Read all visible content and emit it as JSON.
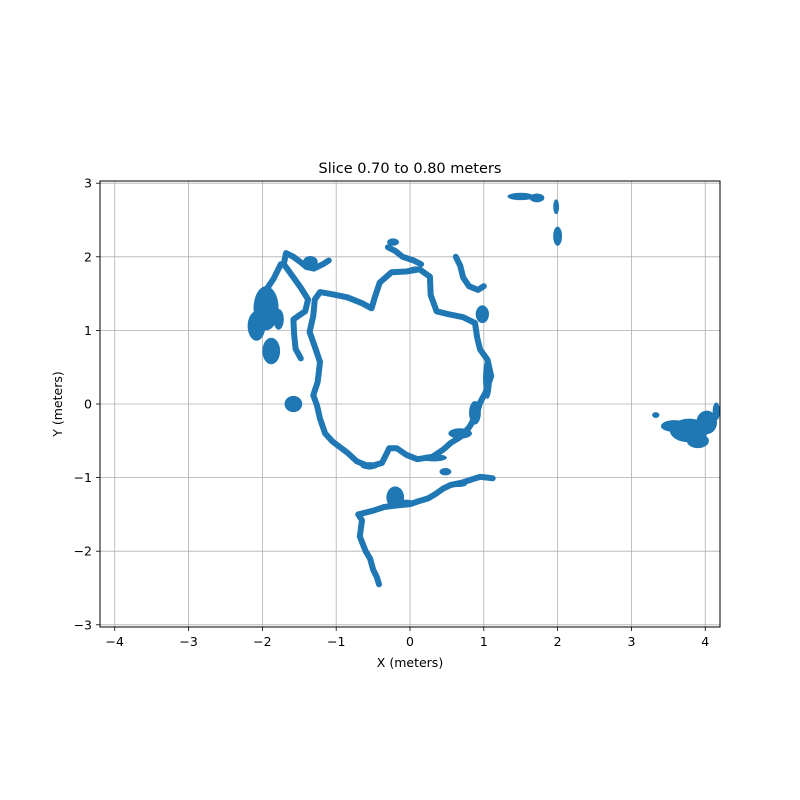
{
  "chart_data": {
    "type": "scatter",
    "title": "Slice 0.70 to 0.80 meters",
    "xlabel": "X (meters)",
    "ylabel": "Y (meters)",
    "xlim": [
      -4.2,
      4.2
    ],
    "ylim": [
      -3.03,
      3.03
    ],
    "xticks": [
      -4,
      -3,
      -2,
      -1,
      0,
      1,
      2,
      3,
      4
    ],
    "yticks": [
      -3,
      -2,
      -1,
      0,
      1,
      2,
      3
    ],
    "xtick_labels": [
      "−4",
      "−3",
      "−2",
      "−1",
      "0",
      "1",
      "2",
      "3",
      "4"
    ],
    "ytick_labels": [
      "−3",
      "−2",
      "−1",
      "0",
      "1",
      "2",
      "3"
    ],
    "grid": true,
    "color": "#1f77b4",
    "series": [
      {
        "paths": [
          [
            [
              -1.22,
              0.57
            ],
            [
              -1.27,
              0.72
            ],
            [
              -1.36,
              0.98
            ],
            [
              -1.31,
              1.2
            ],
            [
              -1.29,
              1.42
            ],
            [
              -1.22,
              1.52
            ],
            [
              -1.05,
              1.49
            ],
            [
              -0.85,
              1.45
            ],
            [
              -0.65,
              1.37
            ],
            [
              -0.52,
              1.3
            ],
            [
              -0.48,
              1.44
            ],
            [
              -0.41,
              1.65
            ],
            [
              -0.25,
              1.79
            ],
            [
              -0.05,
              1.8
            ],
            [
              0.13,
              1.83
            ],
            [
              0.27,
              1.73
            ],
            [
              0.28,
              1.48
            ],
            [
              0.36,
              1.26
            ],
            [
              0.52,
              1.22
            ],
            [
              0.72,
              1.18
            ],
            [
              0.88,
              1.1
            ],
            [
              0.91,
              0.9
            ],
            [
              0.95,
              0.74
            ],
            [
              1.05,
              0.6
            ],
            [
              1.1,
              0.38
            ],
            [
              1.02,
              0.15
            ],
            [
              0.95,
              0.02
            ],
            [
              0.9,
              -0.15
            ],
            [
              0.8,
              -0.32
            ],
            [
              0.68,
              -0.45
            ],
            [
              0.55,
              -0.53
            ],
            [
              0.45,
              -0.62
            ],
            [
              0.3,
              -0.72
            ],
            [
              0.1,
              -0.75
            ],
            [
              -0.05,
              -0.69
            ],
            [
              -0.18,
              -0.6
            ],
            [
              -0.28,
              -0.6
            ],
            [
              -0.38,
              -0.8
            ],
            [
              -0.55,
              -0.85
            ],
            [
              -0.72,
              -0.78
            ],
            [
              -0.85,
              -0.66
            ],
            [
              -1.05,
              -0.51
            ],
            [
              -1.15,
              -0.4
            ],
            [
              -1.22,
              -0.2
            ],
            [
              -1.26,
              -0.02
            ],
            [
              -1.31,
              0.12
            ],
            [
              -1.25,
              0.3
            ],
            [
              -1.22,
              0.57
            ]
          ],
          [
            [
              -1.48,
              0.62
            ],
            [
              -1.55,
              0.75
            ],
            [
              -1.57,
              0.95
            ],
            [
              -1.58,
              1.15
            ],
            [
              -1.48,
              1.22
            ],
            [
              -1.42,
              1.26
            ],
            [
              -1.38,
              1.42
            ],
            [
              -1.48,
              1.58
            ],
            [
              -1.58,
              1.72
            ],
            [
              -1.65,
              1.82
            ],
            [
              -1.71,
              1.9
            ],
            [
              -1.68,
              2.05
            ],
            [
              -1.58,
              2.0
            ],
            [
              -1.5,
              1.94
            ],
            [
              -1.4,
              1.86
            ],
            [
              -1.3,
              1.84
            ],
            [
              -1.18,
              1.9
            ],
            [
              -1.1,
              1.95
            ]
          ],
          [
            [
              -1.75,
              1.9
            ],
            [
              -1.85,
              1.7
            ],
            [
              -1.95,
              1.55
            ]
          ],
          [
            [
              -0.7,
              -1.5
            ],
            [
              -0.65,
              -1.58
            ],
            [
              -0.68,
              -1.8
            ],
            [
              -0.6,
              -2.0
            ],
            [
              -0.54,
              -2.1
            ],
            [
              -0.5,
              -2.25
            ],
            [
              -0.45,
              -2.35
            ],
            [
              -0.42,
              -2.45
            ]
          ],
          [
            [
              -0.7,
              -1.5
            ],
            [
              -0.5,
              -1.45
            ],
            [
              -0.35,
              -1.4
            ],
            [
              -0.2,
              -1.38
            ],
            [
              0.0,
              -1.36
            ],
            [
              0.12,
              -1.32
            ],
            [
              0.25,
              -1.28
            ],
            [
              0.35,
              -1.22
            ],
            [
              0.45,
              -1.15
            ],
            [
              0.55,
              -1.1
            ],
            [
              0.7,
              -1.07
            ],
            [
              0.85,
              -1.02
            ],
            [
              0.95,
              -0.99
            ],
            [
              1.05,
              -1.0
            ],
            [
              1.12,
              -1.01
            ]
          ],
          [
            [
              -0.3,
              2.13
            ],
            [
              -0.2,
              2.08
            ],
            [
              -0.1,
              2.0
            ],
            [
              0.05,
              1.95
            ],
            [
              0.15,
              1.9
            ]
          ],
          [
            [
              0.62,
              2.0
            ],
            [
              0.68,
              1.88
            ],
            [
              0.72,
              1.72
            ],
            [
              0.8,
              1.6
            ],
            [
              0.92,
              1.55
            ],
            [
              1.0,
              1.6
            ]
          ]
        ],
        "blobs": [
          {
            "cx": -1.95,
            "cy": 1.3,
            "rx": 0.17,
            "ry": 0.3
          },
          {
            "cx": -2.08,
            "cy": 1.06,
            "rx": 0.12,
            "ry": 0.2
          },
          {
            "cx": -1.88,
            "cy": 0.72,
            "rx": 0.12,
            "ry": 0.18
          },
          {
            "cx": -1.78,
            "cy": 1.15,
            "rx": 0.07,
            "ry": 0.14
          },
          {
            "cx": -1.58,
            "cy": 0.0,
            "rx": 0.12,
            "ry": 0.11
          },
          {
            "cx": -1.35,
            "cy": 1.93,
            "rx": 0.1,
            "ry": 0.08
          },
          {
            "cx": -0.23,
            "cy": 2.2,
            "rx": 0.08,
            "ry": 0.05
          },
          {
            "cx": 0.08,
            "cy": 1.83,
            "rx": 0.1,
            "ry": 0.04
          },
          {
            "cx": 0.98,
            "cy": 1.22,
            "rx": 0.09,
            "ry": 0.12
          },
          {
            "cx": 1.05,
            "cy": 0.35,
            "rx": 0.06,
            "ry": 0.28
          },
          {
            "cx": 0.88,
            "cy": -0.12,
            "rx": 0.08,
            "ry": 0.16
          },
          {
            "cx": 0.68,
            "cy": -0.4,
            "rx": 0.16,
            "ry": 0.07
          },
          {
            "cx": 0.32,
            "cy": -0.73,
            "rx": 0.18,
            "ry": 0.05
          },
          {
            "cx": -0.55,
            "cy": -0.84,
            "rx": 0.12,
            "ry": 0.05
          },
          {
            "cx": 0.48,
            "cy": -0.92,
            "rx": 0.08,
            "ry": 0.05
          },
          {
            "cx": -0.2,
            "cy": -1.27,
            "rx": 0.12,
            "ry": 0.15
          },
          {
            "cx": -0.05,
            "cy": -1.35,
            "rx": 0.12,
            "ry": 0.05
          },
          {
            "cx": 0.65,
            "cy": -1.09,
            "rx": 0.12,
            "ry": 0.04
          },
          {
            "cx": 1.5,
            "cy": 2.82,
            "rx": 0.18,
            "ry": 0.05
          },
          {
            "cx": 1.72,
            "cy": 2.8,
            "rx": 0.1,
            "ry": 0.06
          },
          {
            "cx": 1.98,
            "cy": 2.68,
            "rx": 0.04,
            "ry": 0.1
          },
          {
            "cx": 2.0,
            "cy": 2.28,
            "rx": 0.06,
            "ry": 0.13
          },
          {
            "cx": 3.78,
            "cy": -0.36,
            "rx": 0.26,
            "ry": 0.16
          },
          {
            "cx": 3.58,
            "cy": -0.3,
            "rx": 0.18,
            "ry": 0.08
          },
          {
            "cx": 4.02,
            "cy": -0.25,
            "rx": 0.14,
            "ry": 0.16
          },
          {
            "cx": 3.9,
            "cy": -0.5,
            "rx": 0.15,
            "ry": 0.1
          },
          {
            "cx": 4.15,
            "cy": -0.1,
            "rx": 0.05,
            "ry": 0.12
          },
          {
            "cx": 3.33,
            "cy": -0.15,
            "rx": 0.05,
            "ry": 0.04
          }
        ]
      }
    ]
  }
}
